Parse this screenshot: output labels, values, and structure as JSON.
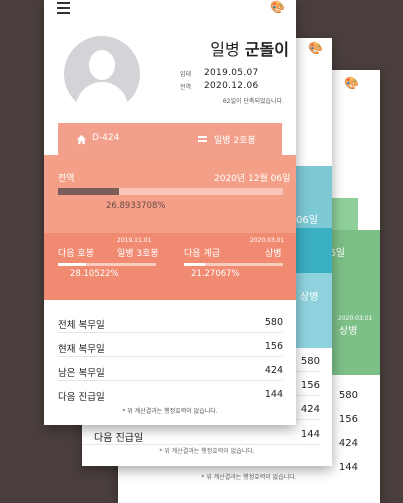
{
  "profile": {
    "rank": "일병",
    "name": "군돌이",
    "enlist_label": "입대",
    "enlist_date": "2019.05.07",
    "discharge_label": "전역",
    "discharge_date": "2020.12.06",
    "shortened_text": "62일이 단축되었습니다."
  },
  "dday": {
    "label": "D-424",
    "current_rank": "일병 2호봉"
  },
  "discharge": {
    "label": "전역",
    "date": "2020년 12월 06일",
    "progress_text": "26.8933708%",
    "progress": 0.269
  },
  "next_step": {
    "label": "다음 호봉",
    "date": "2019.11.01",
    "target": "일병 3호봉",
    "progress_text": "28.10522%",
    "progress": 0.281
  },
  "next_rank": {
    "label": "다음 계급",
    "date": "2020.03.01",
    "target": "상병",
    "progress_text": "21.27067%",
    "progress": 0.213
  },
  "stats": [
    {
      "label": "전체 복무일",
      "value": "580"
    },
    {
      "label": "현재 복무일",
      "value": "156"
    },
    {
      "label": "남은 복무일",
      "value": "424"
    },
    {
      "label": "다음 진급일",
      "value": "144"
    }
  ],
  "note": "* 위 계산결과는 행정효력이 없습니다.",
  "back_card_1": {
    "date": "06일",
    "rank": "상병",
    "values": [
      "580",
      "156",
      "424",
      "144"
    ],
    "last_label": "다음 진급일",
    "note": "* 위 계산결과는 행정효력이 없습니다."
  },
  "back_card_2": {
    "date": "06일",
    "rank_date": "2020.03.01",
    "rank": "상병",
    "values": [
      "580",
      "156",
      "424",
      "144"
    ],
    "last_label": "다음 진급일",
    "note": "* 위 계산결과는 행정효력이 없습니다."
  },
  "colors": {
    "background": "#4a3f3d",
    "salmon": "#f08b72",
    "teal": "#3aaec3",
    "green": "#7cbf87"
  }
}
